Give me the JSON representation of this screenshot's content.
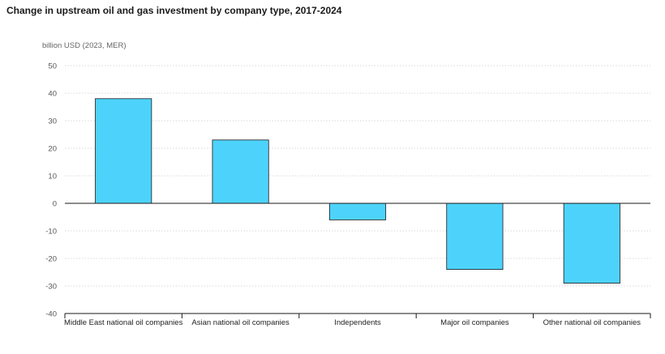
{
  "chart_data": {
    "type": "bar",
    "title": "Change in upstream oil and gas investment by company type, 2017-2024",
    "ylabel": "billion USD (2023, MER)",
    "xlabel": "",
    "categories": [
      "Middle East national oil companies",
      "Asian national oil companies",
      "Independents",
      "Major oil companies",
      "Other national oil companies"
    ],
    "values": [
      38,
      23,
      -6,
      -24,
      -29
    ],
    "ylim": [
      -40,
      50
    ],
    "yticks": [
      50,
      40,
      30,
      20,
      10,
      0,
      -10,
      -20,
      -30,
      -40
    ],
    "ytick_labels": [
      "50",
      "40",
      "30",
      "20",
      "10",
      "0",
      "-10",
      "-20",
      "-30",
      "-40"
    ],
    "grid": true,
    "legend": "none",
    "bar_color": "#4dd3fb",
    "bar_stroke": "#1a1a1a"
  }
}
